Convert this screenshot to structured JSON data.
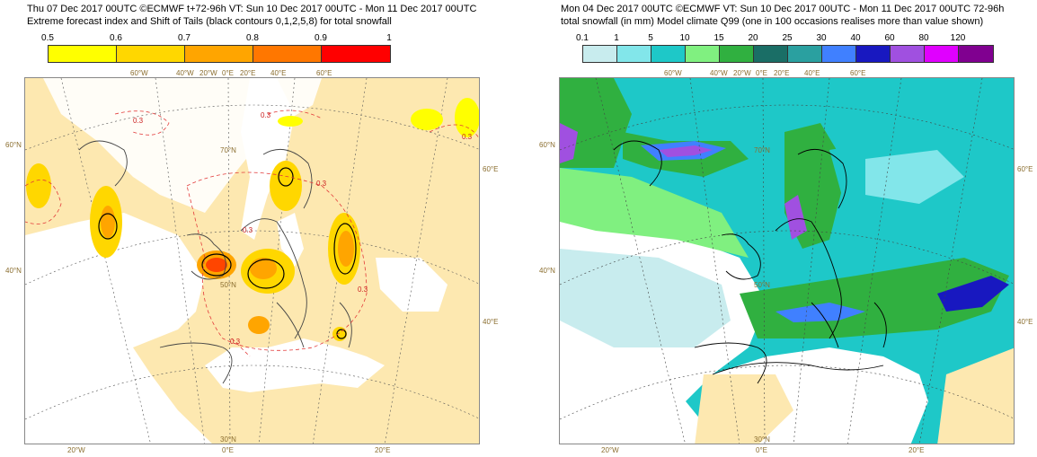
{
  "left": {
    "title_line1": "Thu 07 Dec 2017 00UTC ©ECMWF t+72-96h  VT: Sun 10 Dec 2017 00UTC - Mon 11 Dec 2017 00UTC",
    "title_line2": "Extreme forecast index and Shift of Tails (black contours 0,1,2,5,8) for total snowfall",
    "legend": {
      "ticks": [
        "0.5",
        "0.6",
        "0.7",
        "0.8",
        "0.9",
        "1"
      ],
      "colors": [
        "#ffff00",
        "#ffd700",
        "#ffa500",
        "#ff7700",
        "#ff0000"
      ]
    },
    "contour_label": "0.3",
    "grid_labels": {
      "top": [
        "60°W",
        "40°W",
        "20°W",
        "0°E",
        "20°E",
        "40°E",
        "60°E"
      ],
      "lat_left": [
        "60°N",
        "40°N"
      ],
      "lat_inner": [
        "70°N",
        "50°N",
        "30°N"
      ],
      "right": [
        "60°E",
        "40°E"
      ],
      "bottom": [
        "20°W",
        "0°E",
        "20°E"
      ]
    }
  },
  "right": {
    "title_line1": "Mon 04 Dec 2017 00UTC ©ECMWF VT: Sun 10 Dec 2017 00UTC - Mon 11 Dec 2017 00UTC  72-96h",
    "title_line2": "total snowfall (in mm)  Model climate Q99 (one in 100 occasions realises more than value shown)",
    "legend": {
      "ticks": [
        "0.1",
        "1",
        "5",
        "10",
        "15",
        "20",
        "25",
        "30",
        "40",
        "60",
        "80",
        "120"
      ],
      "colors": [
        "#c8ecee",
        "#82e6ea",
        "#1ec8c8",
        "#80f080",
        "#30b040",
        "#1a6e66",
        "#2aa0a0",
        "#4080ff",
        "#1818c0",
        "#a050e0",
        "#e000ff",
        "#800090"
      ]
    },
    "grid_labels": {
      "top": [
        "60°W",
        "40°W",
        "20°W",
        "0°E",
        "20°E",
        "40°E",
        "60°E"
      ],
      "lat_left": [
        "60°N",
        "40°N"
      ],
      "lat_inner": [
        "70°N",
        "50°N",
        "30°N"
      ],
      "right": [
        "60°E",
        "40°E"
      ],
      "bottom": [
        "20°W",
        "0°E",
        "20°E"
      ]
    }
  }
}
